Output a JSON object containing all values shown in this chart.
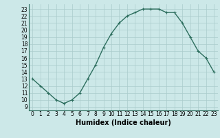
{
  "x": [
    0,
    1,
    2,
    3,
    4,
    5,
    6,
    7,
    8,
    9,
    10,
    11,
    12,
    13,
    14,
    15,
    16,
    17,
    18,
    19,
    20,
    21,
    22,
    23
  ],
  "y": [
    13,
    12,
    11,
    10,
    9.5,
    10,
    11,
    13,
    15,
    17.5,
    19.5,
    21,
    22,
    22.5,
    23,
    23,
    23,
    22.5,
    22.5,
    21,
    19,
    17,
    16,
    14
  ],
  "line_color": "#2d6e5e",
  "marker": "+",
  "bg_color": "#cce8e8",
  "grid_color": "#aacccc",
  "xlabel": "Humidex (Indice chaleur)",
  "xlim": [
    -0.5,
    23.5
  ],
  "ylim": [
    8.5,
    23.7
  ],
  "xticks": [
    0,
    1,
    2,
    3,
    4,
    5,
    6,
    7,
    8,
    9,
    10,
    11,
    12,
    13,
    14,
    15,
    16,
    17,
    18,
    19,
    20,
    21,
    22,
    23
  ],
  "yticks": [
    9,
    10,
    11,
    12,
    13,
    14,
    15,
    16,
    17,
    18,
    19,
    20,
    21,
    22,
    23
  ],
  "xlabel_fontsize": 7,
  "tick_fontsize": 5.5,
  "line_width": 1.0,
  "marker_size": 3,
  "spine_color": "#2d6e5e"
}
